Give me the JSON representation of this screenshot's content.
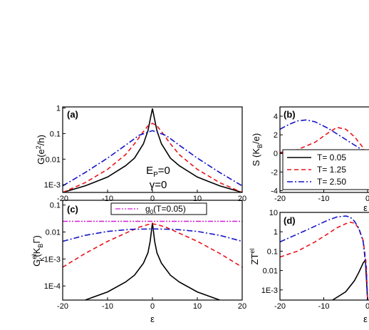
{
  "chart_data": [
    {
      "type": "line",
      "panel_label": "(a)",
      "ylabel_main": "G(e",
      "ylabel_sup": "2",
      "ylabel_tail": "/h)",
      "xlabel": "ε",
      "xlim": [
        -20,
        20
      ],
      "ylim": [
        0.0005,
        1.1
      ],
      "yscale": "log",
      "xticks": [
        -20,
        -10,
        0,
        10,
        20
      ],
      "xtick_labels": [
        "-20",
        "-10",
        "0",
        "10",
        "20"
      ],
      "yticks": [
        0.001,
        0.01,
        0.1,
        1
      ],
      "ytick_labels": [
        "1E-3",
        "0.01",
        "0.1",
        "1"
      ],
      "annotations": [
        {
          "main": "E",
          "sub": "P",
          "tail": "=0"
        },
        {
          "main": "γ=0",
          "sub": "",
          "tail": ""
        }
      ],
      "series": [
        {
          "color": "#000000",
          "dash": "solid",
          "x": [
            -20,
            -15,
            -10,
            -6,
            -4,
            -2,
            -1,
            -0.5,
            0,
            0.5,
            1,
            2,
            4,
            6,
            10,
            15,
            20
          ],
          "y": [
            0.0005,
            0.0009,
            0.002,
            0.0055,
            0.011,
            0.04,
            0.13,
            0.35,
            0.95,
            0.35,
            0.13,
            0.04,
            0.011,
            0.0055,
            0.002,
            0.0009,
            0.0005
          ]
        },
        {
          "color": "#e8141c",
          "dash": "dashed",
          "x": [
            -20,
            -15,
            -10,
            -6,
            -4,
            -2,
            -1,
            0,
            1,
            2,
            4,
            6,
            10,
            15,
            20
          ],
          "y": [
            0.0005,
            0.0012,
            0.004,
            0.015,
            0.04,
            0.12,
            0.2,
            0.25,
            0.2,
            0.12,
            0.04,
            0.015,
            0.004,
            0.0012,
            0.0005
          ]
        },
        {
          "color": "#1414c8",
          "dash": "dashdot",
          "x": [
            -20,
            -15,
            -10,
            -6,
            -3,
            0,
            3,
            6,
            10,
            15,
            20
          ],
          "y": [
            0.0009,
            0.003,
            0.011,
            0.035,
            0.085,
            0.13,
            0.085,
            0.035,
            0.011,
            0.003,
            0.0009
          ]
        }
      ]
    },
    {
      "type": "line",
      "panel_label": "(b)",
      "ylabel_main": "S (K",
      "ylabel_sub": "B",
      "ylabel_tail": "/e)",
      "xlabel": "ε",
      "xlim": [
        -20,
        0
      ],
      "ylim": [
        -4.2,
        5
      ],
      "xticks": [
        -20,
        -10,
        0
      ],
      "xtick_labels": [
        "-20",
        "-10",
        "0"
      ],
      "yticks": [
        -4,
        -2,
        0,
        2,
        4
      ],
      "ytick_labels": [
        "-4",
        "-2",
        "0",
        "2",
        "4"
      ],
      "legend": {
        "placement": "bottom-right",
        "entries": [
          {
            "label": "T= 0.05",
            "color": "#000000",
            "dash": "solid"
          },
          {
            "label": "T= 1.25",
            "color": "#e8141c",
            "dash": "dashed"
          },
          {
            "label": "T= 2.50",
            "color": "#1414c8",
            "dash": "dashdot"
          }
        ]
      },
      "series": [
        {
          "color": "#000000",
          "dash": "solid",
          "x": [
            -20,
            -15,
            -10,
            -5,
            -3,
            -2,
            -1,
            -0.5,
            0
          ],
          "y": [
            0.02,
            0.04,
            0.06,
            0.12,
            0.2,
            0.3,
            0.4,
            0.3,
            -0.3
          ]
        },
        {
          "color": "#e8141c",
          "dash": "dashed",
          "x": [
            -20,
            -16,
            -12,
            -9,
            -7,
            -5,
            -3,
            -2,
            -1,
            -0.5,
            0
          ],
          "y": [
            0.1,
            0.4,
            1.2,
            2.2,
            2.8,
            2.6,
            1.8,
            1.2,
            0.6,
            0.2,
            -0.2
          ]
        },
        {
          "color": "#1414c8",
          "dash": "dashdot",
          "x": [
            -20,
            -18,
            -16,
            -14,
            -12,
            -9,
            -6,
            -3,
            -1,
            0
          ],
          "y": [
            2.6,
            3.1,
            3.5,
            3.6,
            3.4,
            2.7,
            1.8,
            0.9,
            0.3,
            0
          ]
        }
      ]
    },
    {
      "type": "line",
      "panel_label": "(c)",
      "ylabel_main": "G",
      "ylabel_sup": "el",
      "ylabel_sub": "K",
      "ylabel_tail": "(K",
      "ylabel_sub2": "B",
      "ylabel_tail2": "Γ)",
      "xlabel": "ε",
      "xlim": [
        -20,
        20
      ],
      "ylim": [
        3e-05,
        0.15
      ],
      "yscale": "log",
      "xticks": [
        -20,
        -10,
        0,
        10,
        20
      ],
      "xtick_labels": [
        "-20",
        "-10",
        "0",
        "10",
        "20"
      ],
      "yticks": [
        0.0001,
        0.001,
        0.01,
        0.1
      ],
      "ytick_labels": [
        "1E-4",
        "1E-3",
        "0.01",
        "0.1"
      ],
      "legend": {
        "placement": "top",
        "entries": [
          {
            "label_main": "g",
            "label_sub": "0",
            "label_tail": "(T=0.05)",
            "color": "#d21ed2",
            "dash": "dashdotdot"
          }
        ]
      },
      "series": [
        {
          "color": "#d21ed2",
          "dash": "dashdotdot",
          "x": [
            -20,
            20
          ],
          "y": [
            0.025,
            0.025
          ]
        },
        {
          "color": "#000000",
          "dash": "solid",
          "x": [
            -15,
            -10,
            -6,
            -4,
            -2,
            -1,
            -0.5,
            0,
            0.5,
            1,
            2,
            4,
            6,
            10,
            15
          ],
          "y": [
            3e-05,
            6e-05,
            0.00014,
            0.00025,
            0.0007,
            0.0017,
            0.0045,
            0.022,
            0.0045,
            0.0017,
            0.0007,
            0.00025,
            0.00014,
            6e-05,
            3e-05
          ]
        },
        {
          "color": "#e8141c",
          "dash": "dashed",
          "x": [
            -20,
            -15,
            -10,
            -6,
            -3,
            -1,
            0,
            1,
            3,
            6,
            10,
            15,
            20
          ],
          "y": [
            0.0005,
            0.0016,
            0.0045,
            0.009,
            0.015,
            0.019,
            0.02,
            0.019,
            0.015,
            0.009,
            0.0045,
            0.0016,
            0.0005
          ]
        },
        {
          "color": "#1414c8",
          "dash": "dashdot",
          "x": [
            -20,
            -15,
            -10,
            -5,
            0,
            5,
            10,
            15,
            20
          ],
          "y": [
            0.0045,
            0.0075,
            0.0105,
            0.0125,
            0.013,
            0.0125,
            0.0105,
            0.0075,
            0.0045
          ]
        }
      ]
    },
    {
      "type": "line",
      "panel_label": "(d)",
      "ylabel_main": "ZT",
      "ylabel_sup": "el",
      "xlabel": "ε",
      "xlim": [
        -20,
        0
      ],
      "ylim": [
        0.0003,
        10
      ],
      "yscale": "log",
      "xticks": [
        -20,
        -10,
        0
      ],
      "xtick_labels": [
        "-20",
        "-10",
        "0"
      ],
      "yticks": [
        0.001,
        0.01,
        0.1,
        1,
        10
      ],
      "ytick_labels": [
        "1E-3",
        "0.01",
        "0.1",
        "1",
        "10"
      ],
      "series": [
        {
          "color": "#000000",
          "dash": "solid",
          "x": [
            -8,
            -5,
            -3,
            -2,
            -1,
            -0.5,
            0
          ],
          "y": [
            0.0003,
            0.0008,
            0.003,
            0.008,
            0.025,
            0.035,
            0.0003
          ]
        },
        {
          "color": "#e8141c",
          "dash": "dashed",
          "x": [
            -20,
            -16,
            -12,
            -9,
            -7,
            -5,
            -4,
            -3,
            -2,
            -1,
            -0.3,
            0
          ],
          "y": [
            0.05,
            0.1,
            0.3,
            0.8,
            1.6,
            2.6,
            3.1,
            2.8,
            1.5,
            0.35,
            0.02,
            0.0003
          ]
        },
        {
          "color": "#1414c8",
          "dash": "dashdot",
          "x": [
            -20,
            -17,
            -14,
            -11,
            -9,
            -7,
            -5,
            -4,
            -3,
            -2,
            -1,
            -0.3,
            0
          ],
          "y": [
            0.3,
            0.6,
            1.2,
            2.5,
            4,
            5.8,
            6.5,
            5.8,
            3.5,
            1.5,
            0.3,
            0.01,
            0.0003
          ]
        }
      ]
    }
  ]
}
